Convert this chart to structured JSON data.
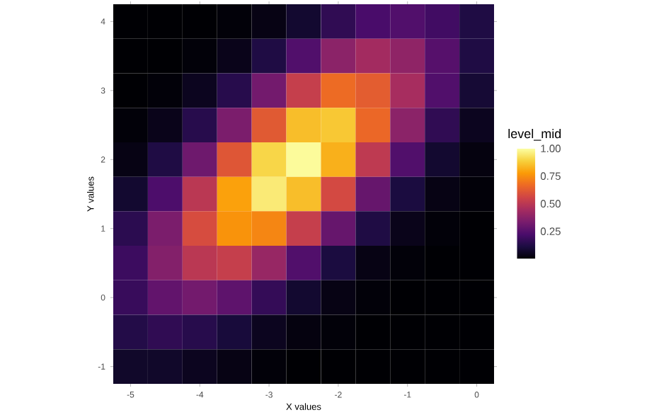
{
  "chart_data": {
    "type": "heatmap",
    "xlabel": "X values",
    "ylabel": "Y values",
    "clabel": "level_mid",
    "categories": [
      "-5",
      null,
      "-4",
      null,
      "-3",
      null,
      "-2",
      null,
      "-1",
      null,
      "0"
    ],
    "y_categories": [
      "4",
      null,
      "3",
      null,
      "2",
      null,
      "1",
      null,
      "0",
      null,
      "-1"
    ],
    "clim": [
      0,
      1
    ],
    "cticks": [
      {
        "value": 0.25,
        "label": "0.25"
      },
      {
        "value": 0.5,
        "label": "0.50"
      },
      {
        "value": 0.75,
        "label": "0.75"
      },
      {
        "value": 1,
        "label": "1.00"
      }
    ],
    "cells": [
      [
        0,
        0,
        0,
        0.01,
        0.03,
        0.08,
        0.16,
        0.22,
        0.24,
        0.2,
        0.12
      ],
      [
        0,
        0,
        0.01,
        0.04,
        0.12,
        0.24,
        0.38,
        0.44,
        0.39,
        0.25,
        0.12
      ],
      [
        0,
        0.01,
        0.05,
        0.14,
        0.32,
        0.53,
        0.67,
        0.63,
        0.45,
        0.24,
        0.09
      ],
      [
        0.01,
        0.04,
        0.14,
        0.34,
        0.62,
        0.85,
        0.87,
        0.66,
        0.38,
        0.16,
        0.05
      ],
      [
        0.03,
        0.12,
        0.31,
        0.61,
        0.9,
        0.99,
        0.82,
        0.51,
        0.24,
        0.08,
        0.02
      ],
      [
        0.08,
        0.23,
        0.5,
        0.79,
        0.95,
        0.85,
        0.57,
        0.29,
        0.11,
        0.03,
        0.01
      ],
      [
        0.15,
        0.34,
        0.58,
        0.76,
        0.73,
        0.53,
        0.29,
        0.12,
        0.04,
        0.01,
        0
      ],
      [
        0.19,
        0.36,
        0.5,
        0.53,
        0.41,
        0.24,
        0.11,
        0.03,
        0.01,
        0,
        0
      ],
      [
        0.18,
        0.28,
        0.32,
        0.27,
        0.17,
        0.08,
        0.03,
        0.01,
        0,
        0,
        0
      ],
      [
        0.13,
        0.16,
        0.14,
        0.1,
        0.05,
        0.02,
        0.01,
        0,
        0,
        0,
        0
      ],
      [
        0.07,
        0.07,
        0.05,
        0.03,
        0.01,
        0,
        0,
        0,
        0,
        0,
        0
      ]
    ]
  }
}
